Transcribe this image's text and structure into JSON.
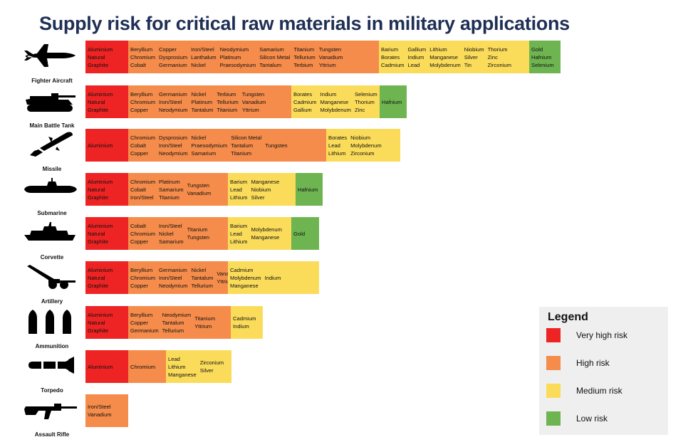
{
  "title": "Supply risk for critical raw materials in military applications",
  "colors": {
    "very-high": "#ee2323",
    "high": "#f58c4b",
    "medium": "#fbdc5a",
    "low": "#6eb450",
    "title": "#1f2f55"
  },
  "platforms": [
    {
      "name": "Fighter Aircraft",
      "icon": "fighter-aircraft-icon",
      "segments": [
        {
          "risk": "very-high",
          "columns": [
            [
              "Aluminium",
              "Natural",
              "Graphite"
            ]
          ]
        },
        {
          "risk": "high",
          "columns": [
            [
              "Beryllium",
              "Chromium",
              "Cobalt"
            ],
            [
              "Copper",
              "Dysprosium",
              "Germanium"
            ],
            [
              "Iron/Steel",
              "Lanthalum",
              "Nickel"
            ],
            [
              "Neodymium",
              "Platinum",
              "Praesodymium"
            ],
            [
              "Samarium",
              "Silicon Metal",
              "Tantalum"
            ],
            [
              "Titanium",
              "Tellurium",
              "Terbium"
            ],
            [
              "Tungsten",
              "Vanadium",
              "Yttrium"
            ]
          ]
        },
        {
          "risk": "medium",
          "columns": [
            [
              "Barium",
              "Borates",
              "Cadmium"
            ],
            [
              "Gallium",
              "Indium",
              "Lead"
            ],
            [
              "Lithium",
              "Manganese",
              "Molybdenum"
            ],
            [
              "Niobium",
              "Silver",
              "Tin"
            ],
            [
              "Thorium",
              "Zinc",
              "Zirconium"
            ]
          ]
        },
        {
          "risk": "low",
          "columns": [
            [
              "Gold",
              "Hafnium",
              "Selenium"
            ]
          ]
        }
      ]
    },
    {
      "name": "Main Battle Tank",
      "icon": "tank-icon",
      "segments": [
        {
          "risk": "very-high",
          "columns": [
            [
              "Aluminium",
              "Natural",
              "Graphite"
            ]
          ]
        },
        {
          "risk": "high",
          "columns": [
            [
              "Beryllium",
              "Chromium",
              "Copper"
            ],
            [
              "Germanium",
              "Iron/Steel",
              "Neodymium"
            ],
            [
              "Nickel",
              "Platinum",
              "Tantalum"
            ],
            [
              "Terbium",
              "Tellurium",
              "Titanium"
            ],
            [
              "Tungsten",
              "Vanadium",
              "Yttrium"
            ]
          ]
        },
        {
          "risk": "medium",
          "columns": [
            [
              "Borates",
              "Cadmium",
              "Gallium"
            ],
            [
              "Indium",
              "Manganese",
              "Molybdenum"
            ],
            [
              "Selenium",
              "Thorium",
              "Zinc"
            ]
          ]
        },
        {
          "risk": "low",
          "columns": [
            [
              "Hafnium"
            ]
          ]
        }
      ]
    },
    {
      "name": "Missile",
      "icon": "missile-icon",
      "segments": [
        {
          "risk": "very-high",
          "columns": [
            [
              "Aluminium"
            ]
          ]
        },
        {
          "risk": "high",
          "columns": [
            [
              "Chromium",
              "Cobalt",
              "Copper"
            ],
            [
              "Dysprosium",
              "Iron/Steel",
              "Neodymium"
            ],
            [
              "Nickel",
              "Praesodymium",
              "Samarium"
            ],
            [
              "Silicon Metal",
              "Tantalum",
              "Titanium"
            ],
            [
              "Tungsten"
            ]
          ]
        },
        {
          "risk": "medium",
          "columns": [
            [
              "Borates",
              "Lead",
              "Lithium"
            ],
            [
              "Niobium",
              "Molybdenum",
              "Zirconium"
            ]
          ]
        }
      ]
    },
    {
      "name": "Submarine",
      "icon": "submarine-icon",
      "segments": [
        {
          "risk": "very-high",
          "columns": [
            [
              "Aluminium",
              "Natural",
              "Graphite"
            ]
          ]
        },
        {
          "risk": "high",
          "columns": [
            [
              "Chromium",
              "Cobalt",
              "Iron/Steel"
            ],
            [
              "Platinum",
              "Samarium",
              "Titanium"
            ],
            [
              "Tungsten",
              "Vanadium"
            ]
          ]
        },
        {
          "risk": "medium",
          "columns": [
            [
              "Barium",
              "Lead",
              "Lithium"
            ],
            [
              "Manganese",
              "Niobium",
              "Silver"
            ]
          ]
        },
        {
          "risk": "low",
          "columns": [
            [
              "Hafnium"
            ]
          ]
        }
      ]
    },
    {
      "name": "Corvette",
      "icon": "corvette-icon",
      "segments": [
        {
          "risk": "very-high",
          "columns": [
            [
              "Aluminium",
              "Natural",
              "Graphite"
            ]
          ]
        },
        {
          "risk": "high",
          "columns": [
            [
              "Cobalt",
              "Chromium",
              "Copper"
            ],
            [
              "Iron/Steel",
              "Nickel",
              "Samarium"
            ],
            [
              "Titanium",
              "Tungsten"
            ]
          ]
        },
        {
          "risk": "medium",
          "columns": [
            [
              "Barium",
              "Lead",
              "Lithium"
            ],
            [
              "Molybdenum",
              "Manganese"
            ]
          ]
        },
        {
          "risk": "low",
          "columns": [
            [
              "Gold"
            ]
          ]
        }
      ]
    },
    {
      "name": "Artillery",
      "icon": "artillery-icon",
      "segments": [
        {
          "risk": "very-high",
          "columns": [
            [
              "Aluminium",
              "Natural",
              "Graphite"
            ]
          ]
        },
        {
          "risk": "high",
          "columns": [
            [
              "Beryllium",
              "Chromium",
              "Copper"
            ],
            [
              "Germanium",
              "Iron/Steel",
              "Neodymium"
            ],
            [
              "Nickel",
              "Tantalum",
              "Tellurium"
            ],
            [
              "Vanadium",
              "Yttrium"
            ]
          ]
        },
        {
          "risk": "medium",
          "columns": [
            [
              "Cadmium",
              "Molybdenum",
              "Manganese"
            ],
            [
              "Indium"
            ]
          ]
        }
      ]
    },
    {
      "name": "Ammunition",
      "icon": "ammunition-icon",
      "segments": [
        {
          "risk": "very-high",
          "columns": [
            [
              "Aluminium",
              "Natural",
              "Graphite"
            ]
          ]
        },
        {
          "risk": "high",
          "columns": [
            [
              "Beryllium",
              "Copper",
              "Germanium"
            ],
            [
              "Neodymium",
              "Tantalum",
              "Tellurium"
            ],
            [
              "Titanium",
              "Yttrium"
            ]
          ]
        },
        {
          "risk": "medium",
          "columns": [
            [
              "Cadmium",
              "Indium"
            ]
          ]
        }
      ]
    },
    {
      "name": "Torpedo",
      "icon": "torpedo-icon",
      "segments": [
        {
          "risk": "very-high",
          "columns": [
            [
              "Aluminium"
            ]
          ]
        },
        {
          "risk": "high",
          "columns": [
            [
              "Chromium"
            ]
          ]
        },
        {
          "risk": "medium",
          "columns": [
            [
              "Lead",
              "Lithium",
              "Manganese"
            ],
            [
              "Zirconium",
              "Silver"
            ]
          ]
        }
      ]
    },
    {
      "name": "Assault Rifle",
      "icon": "assault-rifle-icon",
      "segments": [
        {
          "risk": "high",
          "columns": [
            [
              "Iron/Steel",
              "Vanadium"
            ]
          ]
        }
      ]
    }
  ],
  "legend": {
    "title": "Legend",
    "items": [
      {
        "risk": "very-high",
        "label": "Very high risk"
      },
      {
        "risk": "high",
        "label": "High risk"
      },
      {
        "risk": "medium",
        "label": "Medium risk"
      },
      {
        "risk": "low",
        "label": "Low risk"
      }
    ]
  }
}
